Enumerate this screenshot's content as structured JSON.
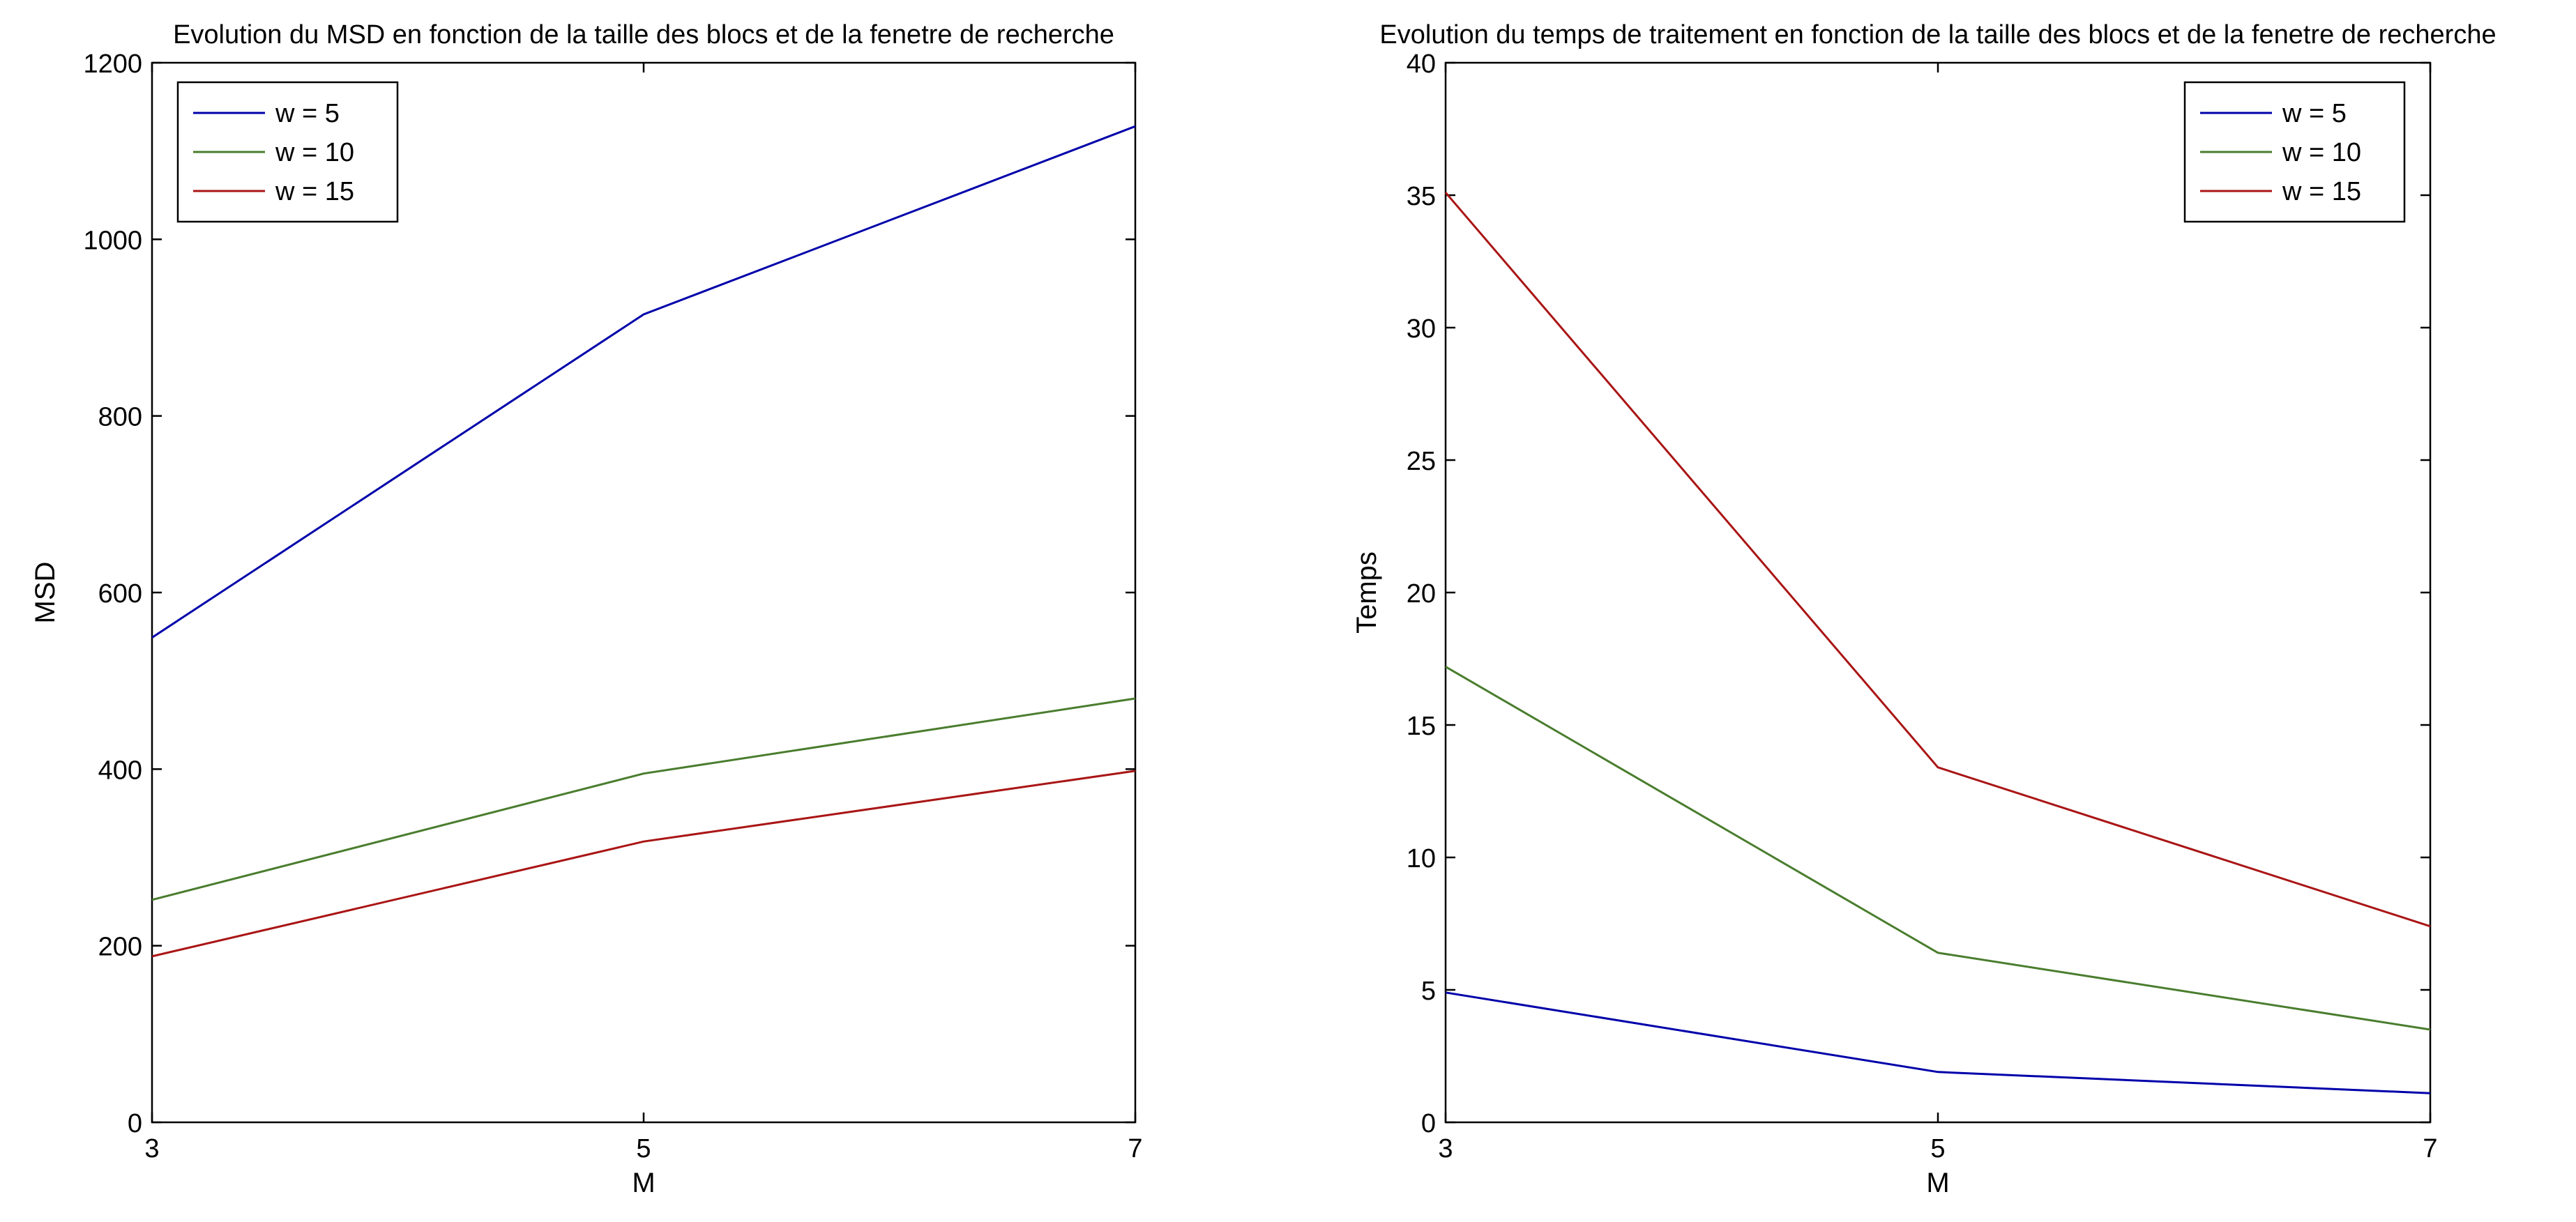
{
  "chart_data": [
    {
      "type": "line",
      "title": "Evolution du MSD en fonction de la taille des blocs et de la fenetre de recherche",
      "xlabel": "M",
      "ylabel": "MSD",
      "x": [
        3,
        5,
        7
      ],
      "xlim": [
        3,
        7
      ],
      "ylim": [
        0,
        1200
      ],
      "xticks": [
        3,
        5,
        7
      ],
      "yticks": [
        0,
        200,
        400,
        600,
        800,
        1000,
        1200
      ],
      "legend_position": "top-left",
      "grid": false,
      "series": [
        {
          "name": "w = 5",
          "color": "#0000aa",
          "values": [
            549,
            915,
            1128
          ]
        },
        {
          "name": "w = 10",
          "color": "#4a7d2e",
          "values": [
            252,
            395,
            480
          ]
        },
        {
          "name": "w = 15",
          "color": "#aa1515",
          "values": [
            188,
            318,
            398
          ]
        }
      ]
    },
    {
      "type": "line",
      "title": "Evolution du temps de traitement en fonction de la taille des blocs et de la fenetre de recherche",
      "xlabel": "M",
      "ylabel": "Temps",
      "x": [
        3,
        5,
        7
      ],
      "xlim": [
        3,
        7
      ],
      "ylim": [
        0,
        40
      ],
      "xticks": [
        3,
        5,
        7
      ],
      "yticks": [
        0,
        5,
        10,
        15,
        20,
        25,
        30,
        35,
        40
      ],
      "legend_position": "top-right",
      "grid": false,
      "series": [
        {
          "name": "w = 5",
          "color": "#0000aa",
          "values": [
            4.9,
            1.9,
            1.1
          ]
        },
        {
          "name": "w = 10",
          "color": "#4a7d2e",
          "values": [
            17.2,
            6.4,
            3.5
          ]
        },
        {
          "name": "w = 15",
          "color": "#aa1515",
          "values": [
            35.1,
            13.4,
            7.4
          ]
        }
      ]
    }
  ]
}
